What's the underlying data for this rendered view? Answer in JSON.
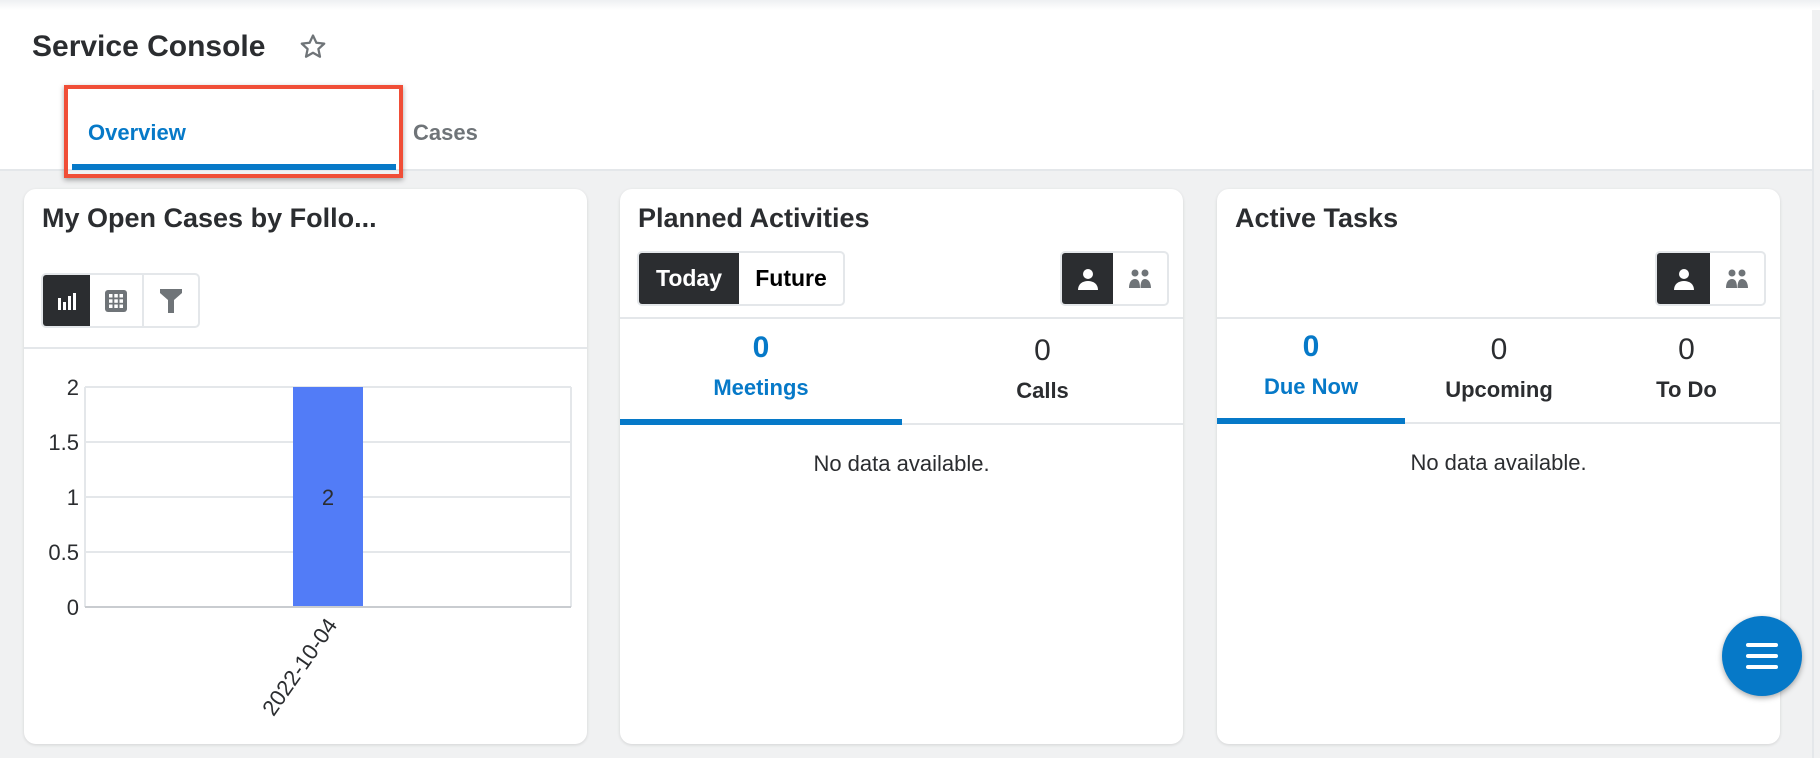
{
  "header": {
    "title": "Service Console",
    "favorite_icon": "star-outline-icon"
  },
  "tabs": [
    {
      "label": "Overview",
      "active": true
    },
    {
      "label": "Cases",
      "active": false
    }
  ],
  "highlight_color": "#f04e37",
  "accent_color": "#0679c8",
  "dashlets": {
    "cases": {
      "title": "My Open Cases by Follo...",
      "view_buttons": [
        {
          "icon": "bar-chart-icon",
          "active": true
        },
        {
          "icon": "grid-icon",
          "active": false
        },
        {
          "icon": "filter-icon",
          "active": false
        }
      ]
    },
    "planned": {
      "title": "Planned Activities",
      "range_buttons": [
        {
          "label": "Today",
          "active": true
        },
        {
          "label": "Future",
          "active": false
        }
      ],
      "user_toggle": [
        {
          "icon": "user-icon",
          "active": true
        },
        {
          "icon": "users-icon",
          "active": false
        }
      ],
      "counts": [
        {
          "value": "0",
          "label": "Meetings",
          "active": true
        },
        {
          "value": "0",
          "label": "Calls",
          "active": false
        }
      ],
      "empty": "No data available."
    },
    "tasks": {
      "title": "Active Tasks",
      "user_toggle": [
        {
          "icon": "user-icon",
          "active": true
        },
        {
          "icon": "users-icon",
          "active": false
        }
      ],
      "counts": [
        {
          "value": "0",
          "label": "Due Now",
          "active": true
        },
        {
          "value": "0",
          "label": "Upcoming",
          "active": false
        },
        {
          "value": "0",
          "label": "To Do",
          "active": false
        }
      ],
      "empty": "No data available."
    }
  },
  "fab": {
    "icon": "menu-icon"
  },
  "chart_data": {
    "type": "bar",
    "categories": [
      "2022-10-04"
    ],
    "values": [
      2
    ],
    "data_labels": [
      "2"
    ],
    "ylim": [
      0,
      2
    ],
    "yticks": [
      "0",
      "0.5",
      "1",
      "1.5",
      "2"
    ],
    "grid": true,
    "bar_color": "#527cf7",
    "xlabel": "",
    "ylabel": ""
  }
}
